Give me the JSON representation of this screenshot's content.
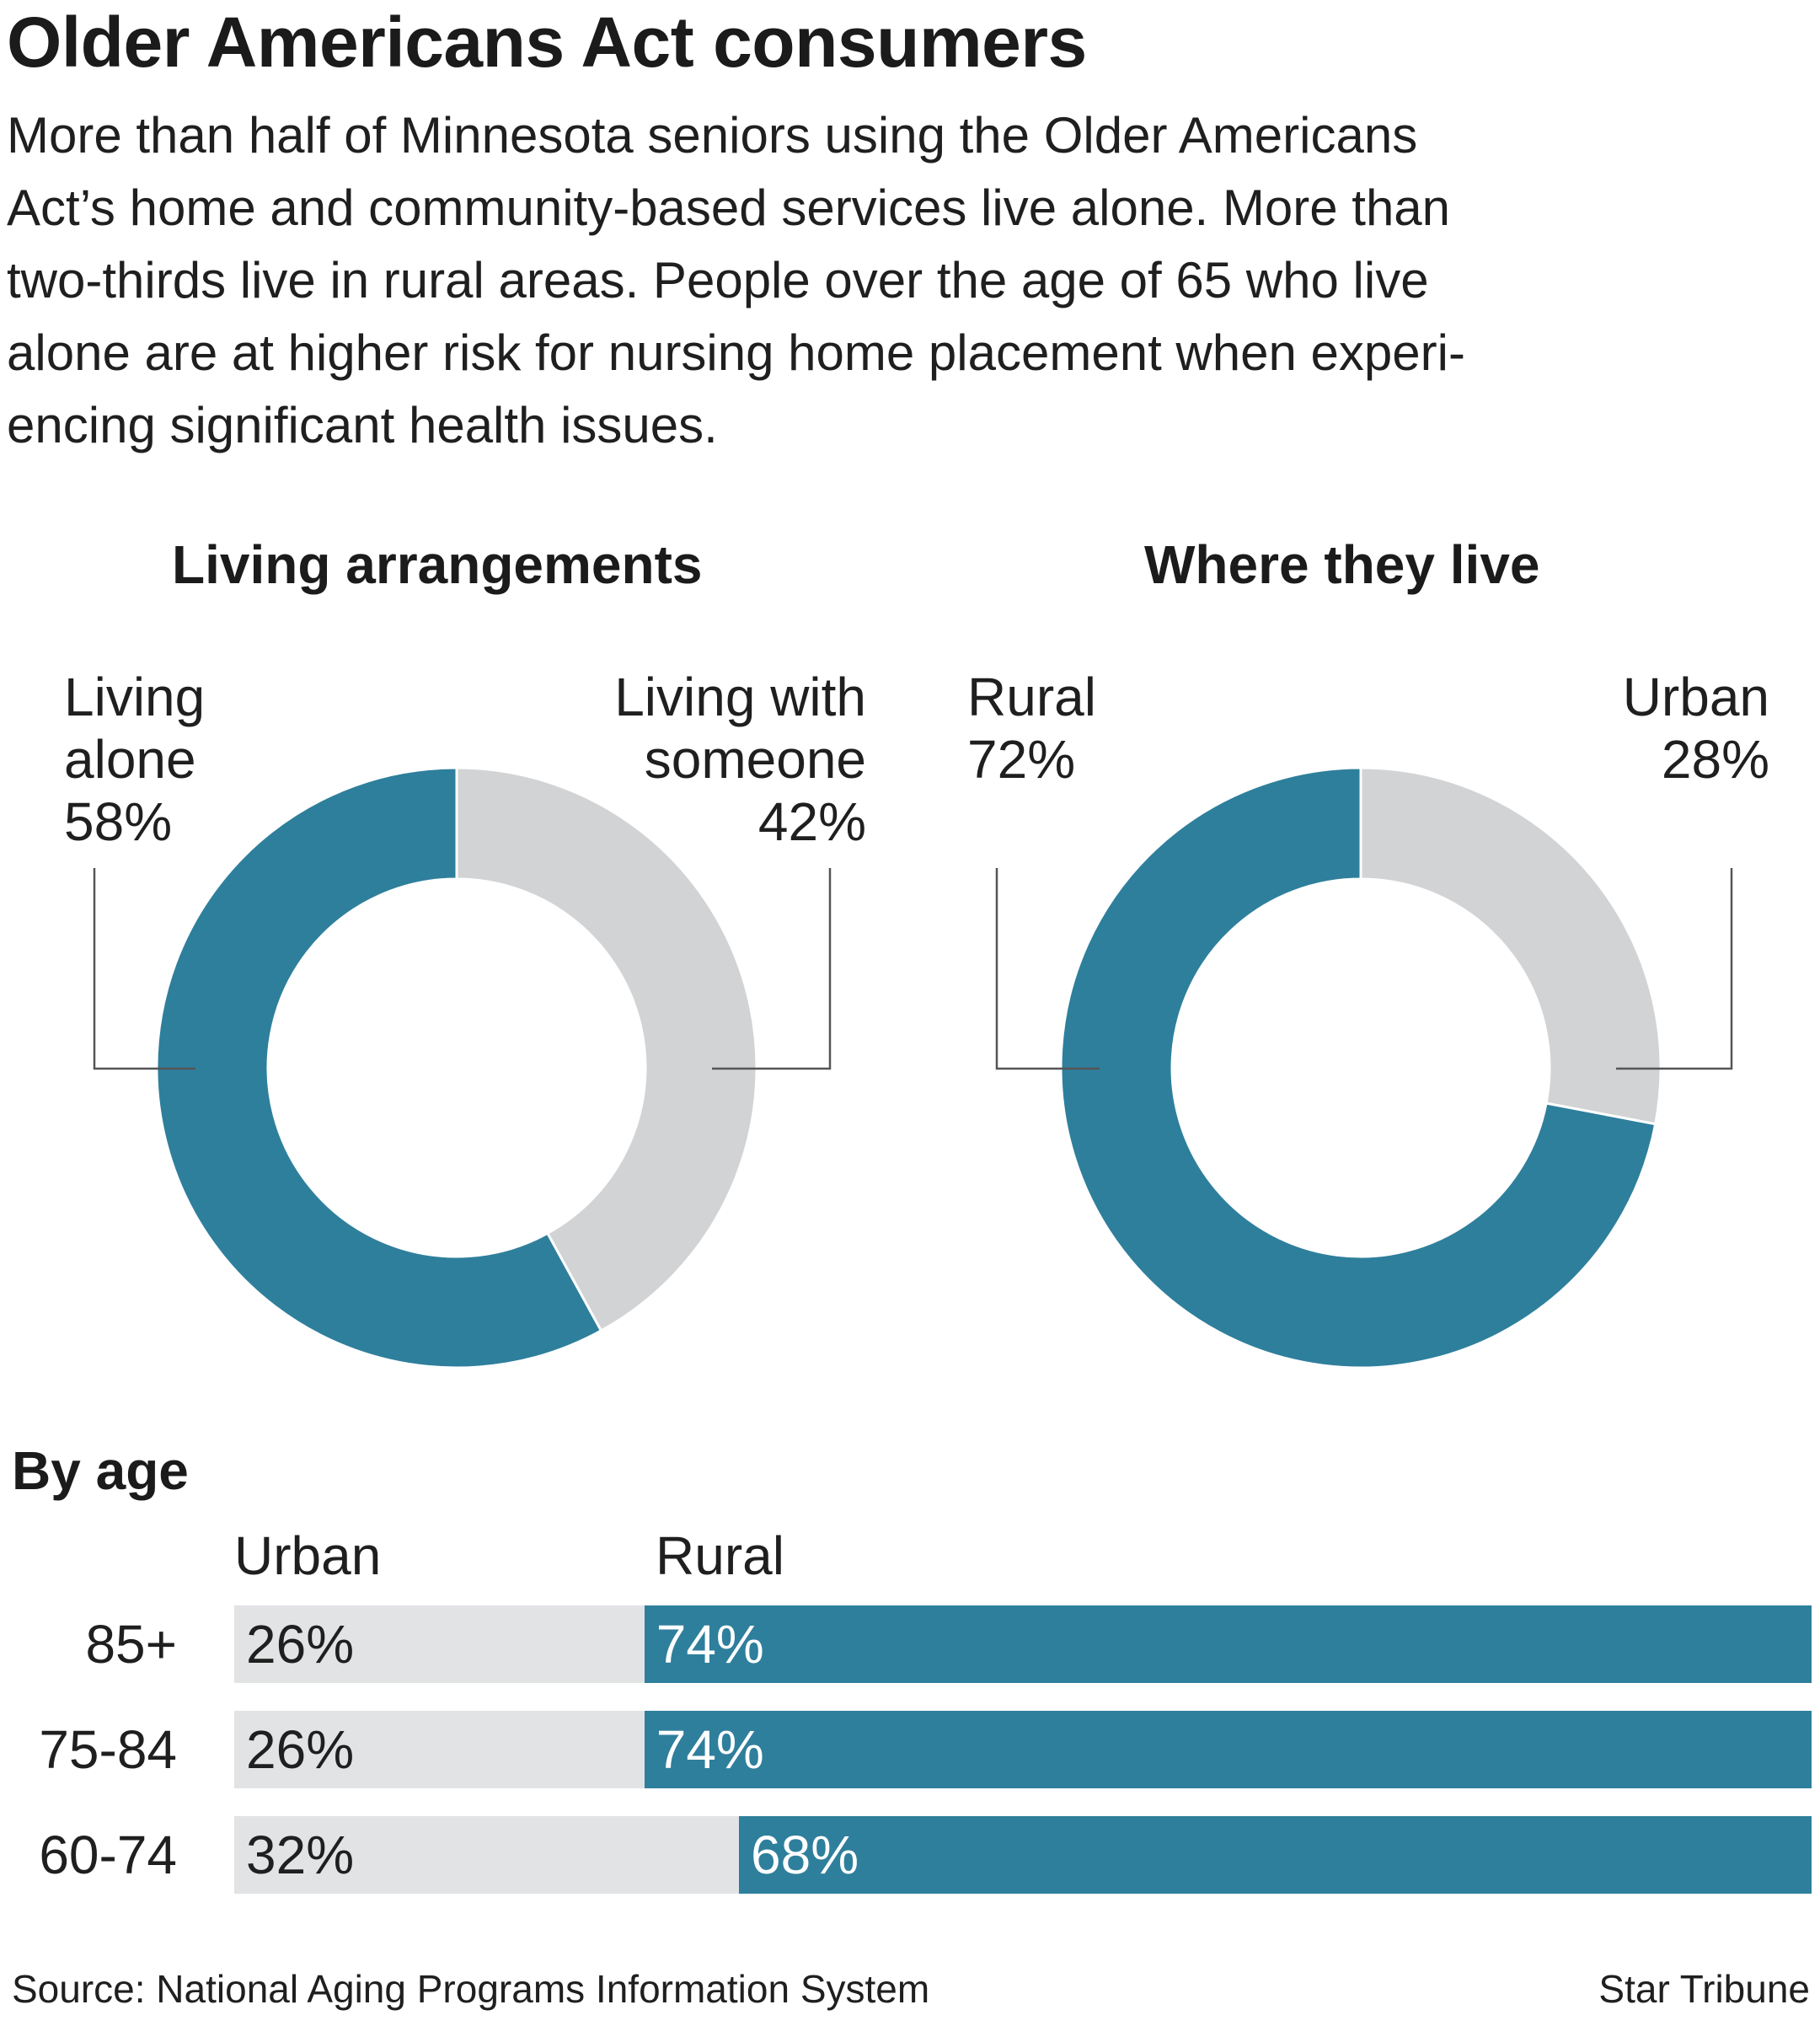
{
  "headline": "Older Americans Act consumers",
  "dek_lines": [
    "More than half of Minnesota seniors using the Older Americans",
    "Act’s home and community-based services live alone. More than",
    "two-thirds live in rural areas. People over the age of 65 who live",
    "alone are at higher risk for nursing home placement when experi-",
    "encing significant health issues."
  ],
  "colors": {
    "primary": "#2e7f9c",
    "secondary": "#d2d3d5",
    "bar_light": "#e2e3e5",
    "leader": "#555555"
  },
  "chart_data": [
    {
      "type": "pie",
      "title": "Living arrangements",
      "slices": [
        {
          "name_lines": [
            "Living",
            "alone"
          ],
          "value_text": "58%",
          "value": 58
        },
        {
          "name_lines": [
            "Living with",
            "someone"
          ],
          "value_text": "42%",
          "value": 42
        }
      ]
    },
    {
      "type": "pie",
      "title": "Where they live",
      "slices": [
        {
          "name_lines": [
            "Rural"
          ],
          "value_text": "72%",
          "value": 72
        },
        {
          "name_lines": [
            "Urban"
          ],
          "value_text": "28%",
          "value": 28
        }
      ]
    },
    {
      "type": "bar",
      "stacked": true,
      "orientation": "horizontal",
      "title": "By age",
      "categories": [
        "85+",
        "75-84",
        "60-74"
      ],
      "series": [
        {
          "name": "Urban",
          "values": [
            26,
            26,
            32
          ],
          "labels": [
            "26%",
            "26%",
            "32%"
          ]
        },
        {
          "name": "Rural",
          "values": [
            74,
            74,
            68
          ],
          "labels": [
            "74%",
            "74%",
            "68%"
          ]
        }
      ]
    }
  ],
  "footer": {
    "source": "Source: National Aging Programs Information System",
    "credit": "Star Tribune"
  }
}
